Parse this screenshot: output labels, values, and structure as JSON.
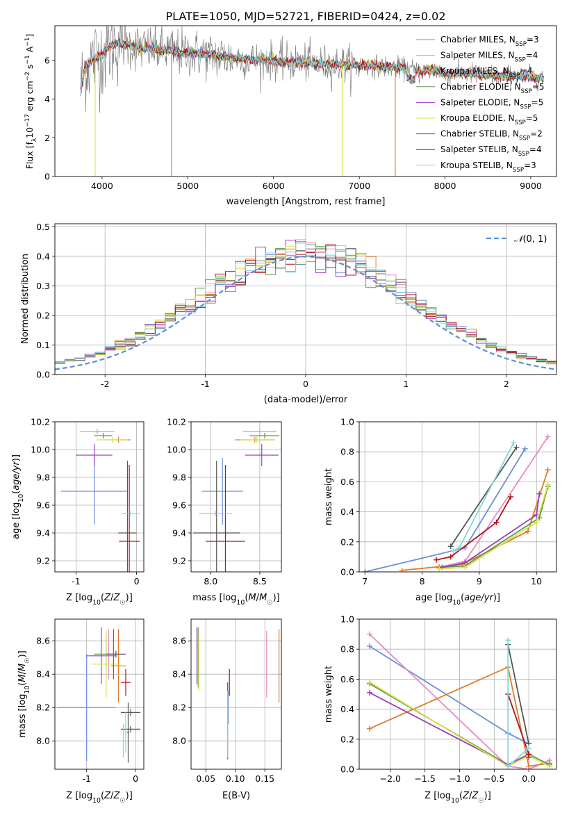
{
  "figure_title": "PLATE=1050, MJD=52721, FIBERID=0424, z=0.02",
  "colors": {
    "observed": "#808080",
    "Chabrier MILES": "#6a8fdb",
    "Salpeter MILES": "#e78ac3",
    "Kroupa MILES": "#e07b2a",
    "Chabrier ELODIE": "#5a9a4a",
    "Salpeter ELODIE": "#9b40b8",
    "Kroupa ELODIE": "#d8e24a",
    "Chabrier STELIB": "#555555",
    "Salpeter STELIB": "#b0141b",
    "Kroupa STELIB": "#86d6d8",
    "normal": "#5b8fd6"
  },
  "chart_data": [
    {
      "id": "spectrum",
      "type": "line",
      "xlabel": "wavelength [Angstrom, rest frame]",
      "ylabel": "Flux [f_λ10^-17 erg cm^-2 s^-1 A^-1]",
      "xlim": [
        3450,
        9300
      ],
      "ylim": [
        0,
        7.8
      ],
      "xticks": [
        4000,
        5000,
        6000,
        7000,
        8000,
        9000
      ],
      "yticks": [
        0,
        2,
        4,
        6
      ],
      "grid": false,
      "legend_position": "right",
      "legend": [
        {
          "model": "Chabrier MILES",
          "n_ssp": 3
        },
        {
          "model": "Salpeter MILES",
          "n_ssp": 4
        },
        {
          "model": "Kroupa MILES",
          "n_ssp": 4
        },
        {
          "model": "Chabrier ELODIE",
          "n_ssp": 5
        },
        {
          "model": "Salpeter ELODIE",
          "n_ssp": 5
        },
        {
          "model": "Kroupa ELODIE",
          "n_ssp": 5
        },
        {
          "model": "Chabrier STELIB",
          "n_ssp": 2
        },
        {
          "model": "Salpeter STELIB",
          "n_ssp": 4
        },
        {
          "model": "Kroupa STELIB",
          "n_ssp": 3
        }
      ],
      "model_continuum": [
        [
          3750,
          4.5
        ],
        [
          3800,
          5.6
        ],
        [
          3900,
          6.1
        ],
        [
          4000,
          6.3
        ],
        [
          4100,
          6.8
        ],
        [
          4200,
          6.9
        ],
        [
          4300,
          6.8
        ],
        [
          4400,
          6.7
        ],
        [
          4500,
          6.6
        ],
        [
          4600,
          6.6
        ],
        [
          4700,
          6.5
        ],
        [
          4800,
          6.5
        ],
        [
          4900,
          6.4
        ],
        [
          5000,
          6.4
        ],
        [
          5200,
          6.3
        ],
        [
          5400,
          6.2
        ],
        [
          5600,
          6.1
        ],
        [
          5800,
          6.0
        ],
        [
          6000,
          6.0
        ],
        [
          6200,
          5.9
        ],
        [
          6400,
          5.9
        ],
        [
          6600,
          5.8
        ],
        [
          6800,
          5.8
        ],
        [
          7000,
          5.75
        ],
        [
          7200,
          5.7
        ],
        [
          7400,
          5.65
        ],
        [
          7600,
          5.55
        ],
        [
          7700,
          5.4
        ],
        [
          7800,
          5.5
        ],
        [
          7900,
          5.5
        ],
        [
          8000,
          5.3
        ],
        [
          8100,
          5.3
        ],
        [
          8200,
          5.35
        ],
        [
          8400,
          5.3
        ],
        [
          8600,
          5.2
        ],
        [
          8800,
          5.2
        ],
        [
          9000,
          5.15
        ],
        [
          9150,
          5.1
        ]
      ]
    },
    {
      "id": "residuals",
      "type": "line",
      "xlabel": "(data-model)/error",
      "ylabel": "Normed distribution",
      "xlim": [
        -2.5,
        2.5
      ],
      "ylim": [
        0,
        0.51
      ],
      "xticks": [
        -2,
        -1,
        0,
        1,
        2
      ],
      "yticks": [
        0.0,
        0.1,
        0.2,
        0.3,
        0.4,
        0.5
      ],
      "grid": true,
      "legend_position": "top-right",
      "legend": [
        "N(0,1)"
      ],
      "bin_width": 0.1
    },
    {
      "id": "age_vs_Z",
      "type": "scatter",
      "xlabel": "Z [log10(Z/Z☉)]",
      "ylabel": "age [log10(age/yr)]",
      "xlim": [
        -1.35,
        0.12
      ],
      "ylim": [
        9.12,
        10.2
      ],
      "xticks": [
        -1,
        0
      ],
      "yticks": [
        9.2,
        9.4,
        9.6,
        9.8,
        10.0,
        10.2
      ],
      "grid": true,
      "points": [
        {
          "model": "Chabrier MILES",
          "x": -0.7,
          "xerr": 0.55,
          "y": 9.7,
          "yerr": 0.24
        },
        {
          "model": "Salpeter MILES",
          "x": -0.65,
          "xerr": 0.28,
          "y": 10.13,
          "yerr": 0.02
        },
        {
          "model": "Kroupa MILES",
          "x": -0.3,
          "xerr": 0.2,
          "y": 10.07,
          "yerr": 0.02
        },
        {
          "model": "Chabrier ELODIE",
          "x": -0.55,
          "xerr": 0.15,
          "y": 10.1,
          "yerr": 0.02
        },
        {
          "model": "Salpeter ELODIE",
          "x": -0.7,
          "xerr": 0.3,
          "y": 9.96,
          "yerr": 0.08
        },
        {
          "model": "Kroupa ELODIE",
          "x": -0.4,
          "xerr": 0.25,
          "y": 10.07,
          "yerr": 0.02
        },
        {
          "model": "Chabrier STELIB",
          "x": -0.15,
          "xerr": 0.15,
          "y": 9.4,
          "yerr": 0.52
        },
        {
          "model": "Salpeter STELIB",
          "x": -0.12,
          "xerr": 0.17,
          "y": 9.34,
          "yerr": 0.55
        },
        {
          "model": "Kroupa STELIB",
          "x": -0.1,
          "xerr": 0.15,
          "y": 9.54,
          "yerr": 0.02
        }
      ]
    },
    {
      "id": "age_vs_mass",
      "type": "scatter",
      "xlabel": "mass [log10(M/M☉)]",
      "ylabel": "",
      "xlim": [
        7.8,
        8.72
      ],
      "ylim": [
        9.12,
        10.2
      ],
      "xticks": [
        8.0,
        8.5
      ],
      "yticks": [
        9.2,
        9.4,
        9.6,
        9.8,
        10.0,
        10.2
      ],
      "grid": true,
      "points": [
        {
          "model": "Chabrier MILES",
          "x": 8.12,
          "xerr": 0.21,
          "y": 9.7,
          "yerr": 0.24
        },
        {
          "model": "Salpeter MILES",
          "x": 8.5,
          "xerr": 0.17,
          "y": 10.13,
          "yerr": 0.02
        },
        {
          "model": "Kroupa MILES",
          "x": 8.45,
          "xerr": 0.2,
          "y": 10.07,
          "yerr": 0.02
        },
        {
          "model": "Chabrier ELODIE",
          "x": 8.55,
          "xerr": 0.15,
          "y": 10.1,
          "yerr": 0.02
        },
        {
          "model": "Salpeter ELODIE",
          "x": 8.52,
          "xerr": 0.17,
          "y": 9.96,
          "yerr": 0.08
        },
        {
          "model": "Kroupa ELODIE",
          "x": 8.47,
          "xerr": 0.17,
          "y": 10.07,
          "yerr": 0.02
        },
        {
          "model": "Chabrier STELIB",
          "x": 8.06,
          "xerr": 0.24,
          "y": 9.4,
          "yerr": 0.52
        },
        {
          "model": "Salpeter STELIB",
          "x": 8.15,
          "xerr": 0.2,
          "y": 9.34,
          "yerr": 0.55
        },
        {
          "model": "Kroupa STELIB",
          "x": 8.05,
          "xerr": 0.17,
          "y": 9.54,
          "yerr": 0.02
        }
      ]
    },
    {
      "id": "massweight_vs_age",
      "type": "line",
      "xlabel": "age [log10(age/yr)]",
      "ylabel": "mass weight",
      "xlim": [
        6.9,
        10.35
      ],
      "ylim": [
        0,
        1.0
      ],
      "xticks": [
        7,
        8,
        9,
        10
      ],
      "yticks": [
        0.0,
        0.2,
        0.4,
        0.6,
        0.8,
        1.0
      ],
      "grid": true,
      "series": [
        {
          "model": "Chabrier MILES",
          "x": [
            7.0,
            8.75,
            9.8
          ],
          "y": [
            0.0,
            0.16,
            0.82
          ]
        },
        {
          "model": "Salpeter MILES",
          "x": [
            8.3,
            8.75,
            10.2
          ],
          "y": [
            0.03,
            0.07,
            0.9
          ]
        },
        {
          "model": "Kroupa MILES",
          "x": [
            7.65,
            8.7,
            9.85,
            10.2
          ],
          "y": [
            0.01,
            0.05,
            0.27,
            0.68
          ]
        },
        {
          "model": "Chabrier ELODIE",
          "x": [
            8.3,
            8.75,
            10.05,
            10.2
          ],
          "y": [
            0.03,
            0.04,
            0.36,
            0.57
          ]
        },
        {
          "model": "Salpeter ELODIE",
          "x": [
            8.35,
            8.75,
            10.0,
            10.05
          ],
          "y": [
            0.03,
            0.06,
            0.38,
            0.52
          ]
        },
        {
          "model": "Kroupa ELODIE",
          "x": [
            8.3,
            8.75,
            10.0,
            10.2
          ],
          "y": [
            0.02,
            0.03,
            0.33,
            0.58
          ]
        },
        {
          "model": "Chabrier STELIB",
          "x": [
            8.5,
            9.65
          ],
          "y": [
            0.17,
            0.83
          ]
        },
        {
          "model": "Salpeter STELIB",
          "x": [
            8.25,
            8.5,
            9.3,
            9.55
          ],
          "y": [
            0.08,
            0.1,
            0.33,
            0.5
          ]
        },
        {
          "model": "Kroupa STELIB",
          "x": [
            8.55,
            8.65,
            9.6
          ],
          "y": [
            0.14,
            0.16,
            0.86
          ]
        }
      ]
    },
    {
      "id": "mass_vs_Z",
      "type": "scatter",
      "xlabel": "Z [log10(Z/Z☉)]",
      "ylabel": "mass [log10(M/M☉)]",
      "xlim": [
        -1.65,
        0.17
      ],
      "ylim": [
        7.83,
        8.73
      ],
      "xticks": [
        -1,
        0
      ],
      "yticks": [
        8.0,
        8.2,
        8.4,
        8.6
      ],
      "grid": true,
      "points": [
        {
          "model": "Chabrier MILES",
          "x": -1.0,
          "xerr": 0.6,
          "y": 8.2,
          "yerr": 0.32
        },
        {
          "model": "Salpeter MILES",
          "x": -0.55,
          "xerr": 0.1,
          "y": 8.52,
          "yerr": 0.15
        },
        {
          "model": "Kroupa MILES",
          "x": -0.35,
          "xerr": 0.15,
          "y": 8.45,
          "yerr": 0.22
        },
        {
          "model": "Chabrier ELODIE",
          "x": -0.6,
          "xerr": 0.25,
          "y": 8.52,
          "yerr": 0.1
        },
        {
          "model": "Salpeter ELODIE",
          "x": -0.7,
          "xerr": 0.3,
          "y": 8.51,
          "yerr": 0.17
        },
        {
          "model": "Kroupa ELODIE",
          "x": -0.6,
          "xerr": 0.3,
          "y": 8.46,
          "yerr": 0.2
        },
        {
          "model": "Chabrier STELIB",
          "x": -0.1,
          "xerr": 0.2,
          "y": 8.07,
          "yerr": 0.02
        },
        {
          "model": "Salpeter STELIB",
          "x": -0.2,
          "xerr": 0.1,
          "y": 8.35,
          "yerr": 0.08
        },
        {
          "model": "Kroupa STELIB",
          "x": -0.25,
          "xerr": 0.05,
          "y": 8.0,
          "yerr": 0.1
        }
      ],
      "extra_points": [
        {
          "model": "Chabrier STELIB",
          "x": -0.1,
          "xerr": 0.2,
          "y": 8.17,
          "yerr": 0.02
        },
        {
          "model": "Chabrier STELIB",
          "x": -0.4,
          "xerr": 0.2,
          "y": 8.52,
          "yerr": 0.02
        },
        {
          "model": "Chabrier STELIB",
          "x": -0.15,
          "xerr": 0.02,
          "y": 8.05,
          "yerr": 0.18
        },
        {
          "model": "Kroupa STELIB",
          "x": -0.2,
          "xerr": 0.02,
          "y": 8.05,
          "yerr": 0.12
        },
        {
          "model": "Salpeter ELODIE",
          "x": -0.45,
          "xerr": 0.02,
          "y": 8.52,
          "yerr": 0.15
        }
      ]
    },
    {
      "id": "mass_vs_EBV",
      "type": "scatter",
      "xlabel": "E(B-V)",
      "ylabel": "",
      "xlim": [
        0.025,
        0.178
      ],
      "ylim": [
        7.83,
        8.73
      ],
      "xticks": [
        0.05,
        0.1,
        0.15
      ],
      "yticks": [
        8.0,
        8.2,
        8.4,
        8.6
      ],
      "grid": true,
      "points": [
        {
          "model": "Chabrier MILES",
          "x": 0.088,
          "y": 8.2,
          "yerr": 0.1
        },
        {
          "model": "Salpeter MILES",
          "x": 0.153,
          "y": 8.46,
          "yerr": 0.2
        },
        {
          "model": "Kroupa MILES",
          "x": 0.174,
          "y": 8.45,
          "yerr": 0.22
        },
        {
          "model": "Chabrier ELODIE",
          "x": 0.037,
          "y": 8.5,
          "yerr": 0.18
        },
        {
          "model": "Salpeter ELODIE",
          "x": 0.035,
          "y": 8.51,
          "yerr": 0.17
        },
        {
          "model": "Kroupa ELODIE",
          "x": 0.038,
          "y": 8.47,
          "yerr": 0.17
        },
        {
          "model": "Chabrier STELIB",
          "x": 0.087,
          "y": 8.12,
          "yerr": 0.23
        },
        {
          "model": "Salpeter STELIB",
          "x": 0.09,
          "y": 8.35,
          "yerr": 0.08
        },
        {
          "model": "Kroupa STELIB",
          "x": 0.087,
          "y": 8.1,
          "yerr": 0.2
        }
      ]
    },
    {
      "id": "massweight_vs_Z",
      "type": "line",
      "xlabel": "Z [log10(Z/Z☉)]",
      "ylabel": "mass weight",
      "xlim": [
        -2.45,
        0.4
      ],
      "ylim": [
        0,
        1.0
      ],
      "xticks": [
        -2.0,
        -1.5,
        -1.0,
        -0.5,
        0.0
      ],
      "yticks": [
        0.0,
        0.2,
        0.4,
        0.6,
        0.8,
        1.0
      ],
      "grid": true,
      "series": [
        {
          "model": "Chabrier MILES",
          "x": [
            -2.3,
            -0.3,
            0.0
          ],
          "y": [
            0.82,
            0.24,
            0.17
          ]
        },
        {
          "model": "Salpeter MILES",
          "x": [
            -2.3,
            -0.3,
            0.0,
            0.3
          ],
          "y": [
            0.9,
            0.02,
            0.0,
            0.06
          ]
        },
        {
          "model": "Kroupa MILES",
          "x": [
            -2.3,
            -0.3,
            0.0,
            0.3
          ],
          "y": [
            0.27,
            0.68,
            0.02,
            0.04
          ]
        },
        {
          "model": "Chabrier ELODIE",
          "x": [
            -2.3,
            -0.3,
            0.0,
            0.3
          ],
          "y": [
            0.57,
            0.03,
            0.1,
            0.03
          ]
        },
        {
          "model": "Salpeter ELODIE",
          "x": [
            -2.3,
            -0.3,
            0.0
          ],
          "y": [
            0.51,
            0.03,
            0.1
          ]
        },
        {
          "model": "Kroupa ELODIE",
          "x": [
            -2.3,
            -0.3,
            0.0,
            0.3
          ],
          "y": [
            0.58,
            0.02,
            0.09,
            0.02
          ]
        },
        {
          "model": "Chabrier STELIB",
          "x": [
            -0.3,
            0.0
          ],
          "y": [
            0.83,
            0.17
          ]
        },
        {
          "model": "Salpeter STELIB",
          "x": [
            -0.3,
            0.0,
            0.0
          ],
          "y": [
            0.5,
            0.1,
            0.08
          ]
        },
        {
          "model": "Kroupa STELIB",
          "x": [
            -0.3,
            -0.3,
            0.0
          ],
          "y": [
            0.86,
            0.02,
            0.14
          ]
        }
      ]
    }
  ]
}
